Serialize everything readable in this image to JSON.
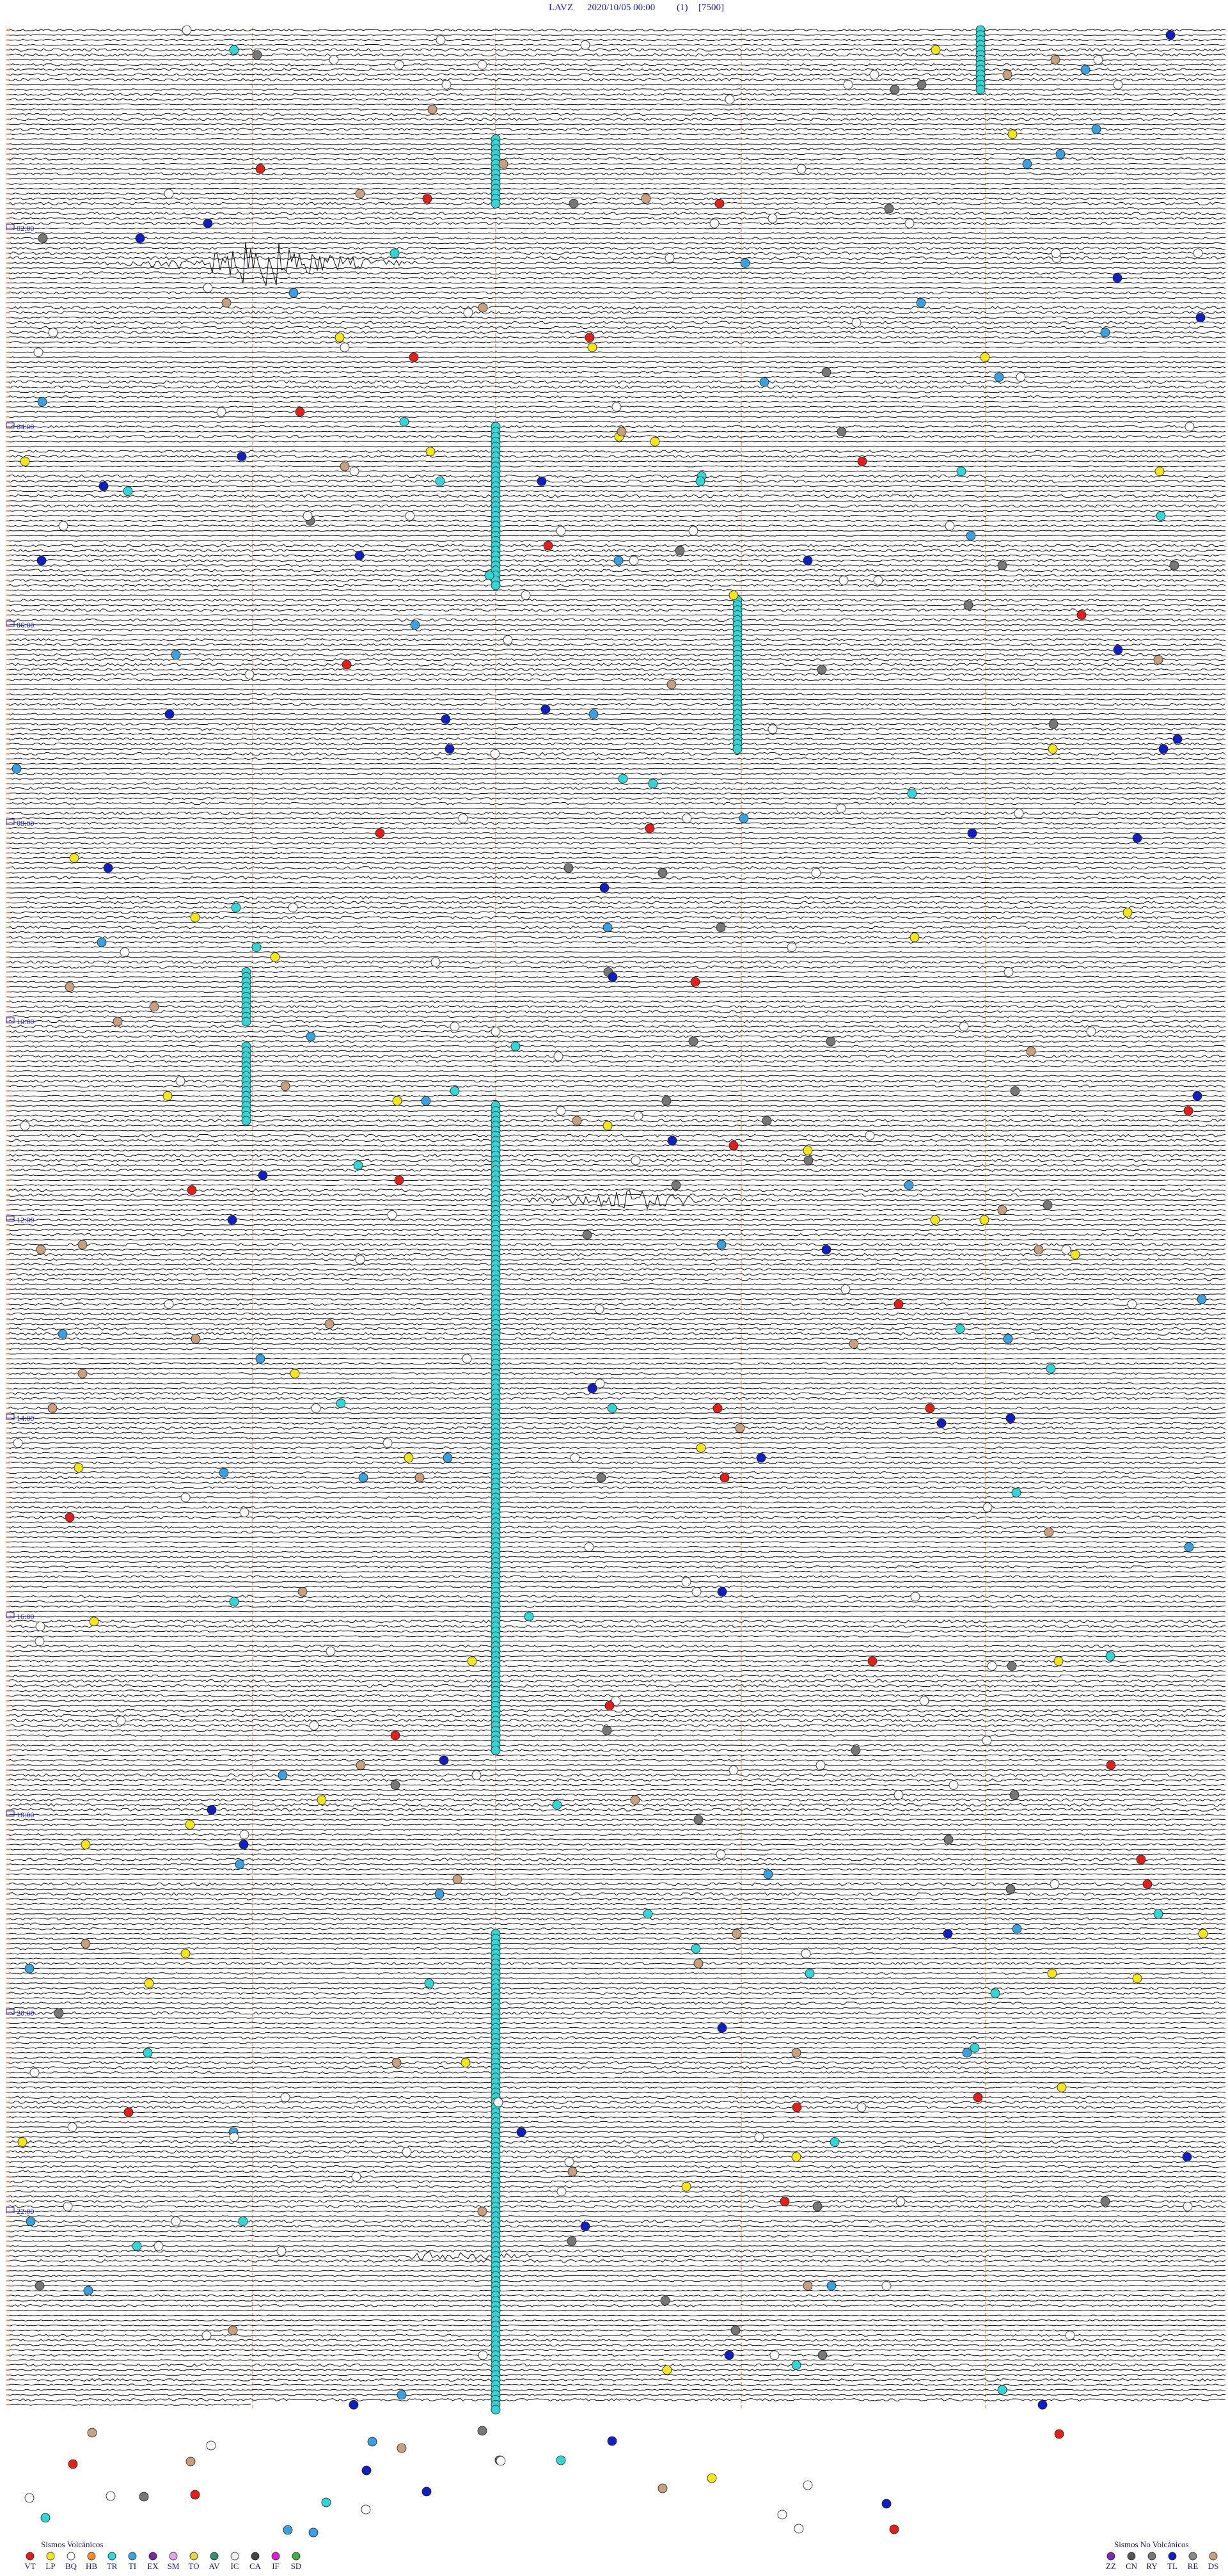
{
  "header": {
    "station": "LAVZ",
    "datetime": "2020/10/05 00:00",
    "channel": "(1)",
    "scale": "[7500]"
  },
  "time_labels": [
    "02:00",
    "04:00",
    "06:00",
    "08:00",
    "10:00",
    "12:00",
    "14:00",
    "16:00",
    "18:00",
    "20:00",
    "22:00"
  ],
  "legend": [
    {
      "title": "Sismos Volcánicos",
      "items": [
        {
          "code": "VT",
          "color": "#e0201b"
        },
        {
          "code": "LP",
          "color": "#f5e61c"
        },
        {
          "code": "BQ",
          "color": "#ffffff"
        },
        {
          "code": "HB",
          "color": "#f28c28"
        },
        {
          "code": "TR",
          "color": "#33d6d6"
        },
        {
          "code": "TI",
          "color": "#3aa0e0"
        },
        {
          "code": "EX",
          "color": "#7b2a9c"
        },
        {
          "code": "SM",
          "color": "#e6a3e6"
        },
        {
          "code": "TO",
          "color": "#e8d24a"
        },
        {
          "code": "AV",
          "color": "#2f8f6f"
        },
        {
          "code": "IC",
          "color": "#f0f0f0"
        },
        {
          "code": "CA",
          "color": "#444444"
        },
        {
          "code": "IF",
          "color": "#e020d0"
        },
        {
          "code": "SD",
          "color": "#40b040"
        }
      ]
    },
    {
      "title": "Sismos No Volcánicos",
      "items": [
        {
          "code": "ZZ",
          "color": "#7a2ab0"
        },
        {
          "code": "CN",
          "color": "#555555"
        },
        {
          "code": "RY",
          "color": "#777777"
        },
        {
          "code": "TL",
          "color": "#1020c0"
        },
        {
          "code": "RE",
          "color": "#888888"
        },
        {
          "code": "DS",
          "color": "#c8a080"
        }
      ]
    }
  ]
}
